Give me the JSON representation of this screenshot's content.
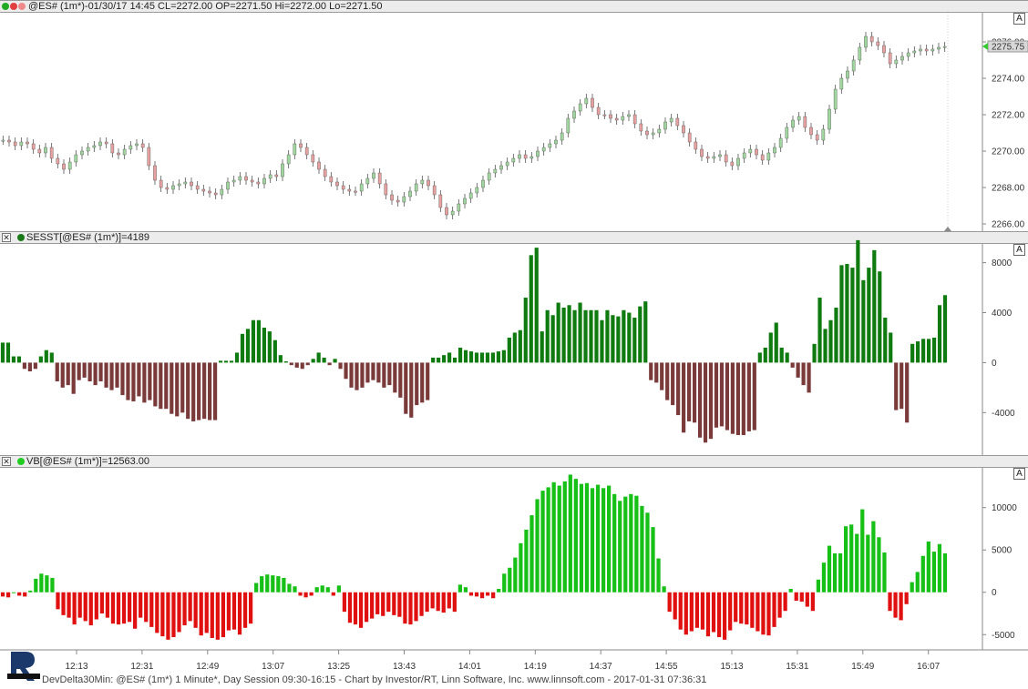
{
  "colors": {
    "up_green": "#0f7a0f",
    "down_brown": "#7a3a3a",
    "vb_up": "#16c016",
    "vb_down": "#e01010",
    "candle_up": "#9ed69e",
    "candle_down": "#e6a0a0",
    "header_bg": "#ececec"
  },
  "panels": {
    "price_header": "@ES# (1m*)-01/30/17 14:45 CL=2272.00 OP=2271.50 Hi=2272.00 Lo=2271.50",
    "sesst_header": "SESST[@ES# (1m*)]=4189",
    "vb_header": "VB[@ES# (1m*)]=12563.00",
    "a_button": "A",
    "close_button": "✕"
  },
  "footer": "DevDelta30Min: @ES# (1m*) 1 Minute*, Day Session 09:30-16:15 - Chart by Investor/RT, Linn Software, Inc. www.linnsoft.com - 2017-01-31 07:36:31",
  "chart_data": [
    {
      "type": "candlestick",
      "yticks": [
        "2276.00",
        "2274.00",
        "2272.00",
        "2270.00",
        "2268.00",
        "2266.00"
      ],
      "ylim": [
        2265.6,
        2277.6
      ],
      "last_price": "2275.75",
      "y": [
        2270.6,
        2270.5,
        2270.3,
        2270.5,
        2270.4,
        2270.1,
        2269.9,
        2270.2,
        2269.6,
        2269.3,
        2269.0,
        2269.4,
        2269.8,
        2270.0,
        2270.2,
        2270.3,
        2270.5,
        2270.4,
        2269.9,
        2269.8,
        2270.1,
        2270.3,
        2270.4,
        2270.2,
        2269.2,
        2268.4,
        2268.0,
        2267.9,
        2268.1,
        2268.2,
        2268.3,
        2268.1,
        2267.9,
        2267.8,
        2267.7,
        2267.6,
        2267.9,
        2268.3,
        2268.4,
        2268.6,
        2268.4,
        2268.3,
        2268.2,
        2268.5,
        2268.7,
        2268.6,
        2269.3,
        2269.8,
        2270.4,
        2270.2,
        2269.8,
        2269.4,
        2269.0,
        2268.6,
        2268.3,
        2268.1,
        2267.9,
        2267.8,
        2267.8,
        2268.2,
        2268.5,
        2268.8,
        2268.2,
        2267.6,
        2267.3,
        2267.2,
        2267.5,
        2267.8,
        2268.2,
        2268.4,
        2268.1,
        2267.6,
        2266.9,
        2266.5,
        2266.7,
        2267.1,
        2267.4,
        2267.7,
        2268.0,
        2268.4,
        2268.8,
        2269.0,
        2269.2,
        2269.4,
        2269.6,
        2269.8,
        2269.6,
        2269.7,
        2270.0,
        2270.2,
        2270.4,
        2270.6,
        2271.0,
        2271.8,
        2272.2,
        2272.6,
        2272.9,
        2272.4,
        2272.0,
        2272.0,
        2271.8,
        2271.7,
        2271.9,
        2272.0,
        2271.5,
        2271.1,
        2270.9,
        2271.0,
        2271.2,
        2271.6,
        2271.8,
        2271.4,
        2271.0,
        2270.5,
        2270.1,
        2269.7,
        2269.6,
        2269.7,
        2269.8,
        2269.4,
        2269.2,
        2269.6,
        2269.9,
        2270.1,
        2269.8,
        2269.5,
        2269.9,
        2270.2,
        2270.7,
        2271.3,
        2271.7,
        2271.9,
        2271.3,
        2270.9,
        2270.6,
        2271.2,
        2272.3,
        2273.4,
        2274.0,
        2274.4,
        2275.0,
        2275.7,
        2276.3,
        2276.0,
        2275.8,
        2275.4,
        2274.8,
        2275.0,
        2275.2,
        2275.4,
        2275.5,
        2275.6,
        2275.5,
        2275.6,
        2275.7,
        2275.75
      ],
      "up": [
        true,
        false,
        false,
        true,
        false,
        false,
        false,
        true,
        false,
        false,
        false,
        true,
        true,
        true,
        true,
        true,
        true,
        false,
        false,
        false,
        true,
        true,
        true,
        false,
        false,
        false,
        false,
        false,
        true,
        true,
        true,
        false,
        false,
        false,
        false,
        false,
        true,
        true,
        true,
        true,
        false,
        false,
        false,
        true,
        true,
        false,
        true,
        true,
        true,
        false,
        false,
        false,
        false,
        false,
        false,
        false,
        false,
        false,
        false,
        true,
        true,
        true,
        false,
        false,
        false,
        false,
        true,
        true,
        true,
        true,
        false,
        false,
        false,
        false,
        true,
        true,
        true,
        true,
        true,
        true,
        true,
        true,
        true,
        true,
        true,
        true,
        false,
        true,
        true,
        true,
        true,
        true,
        true,
        true,
        true,
        true,
        true,
        false,
        false,
        false,
        false,
        false,
        true,
        true,
        false,
        false,
        false,
        true,
        true,
        true,
        true,
        false,
        false,
        false,
        false,
        false,
        false,
        true,
        true,
        false,
        false,
        true,
        true,
        true,
        false,
        false,
        true,
        true,
        true,
        true,
        true,
        true,
        false,
        false,
        false,
        true,
        true,
        true,
        true,
        true,
        true,
        true,
        true,
        false,
        false,
        false,
        false,
        true,
        true,
        true,
        true,
        true,
        false,
        true,
        true,
        true
      ]
    },
    {
      "type": "bar",
      "yticks": [
        "8000",
        "4000",
        "0",
        "-4000"
      ],
      "ylim": [
        -7400,
        9500
      ],
      "values": [
        1600,
        1600,
        500,
        500,
        -500,
        -700,
        -500,
        500,
        1000,
        800,
        -1500,
        -2000,
        -1800,
        -2500,
        -1400,
        -1200,
        -1500,
        -1800,
        -1500,
        -2000,
        -2200,
        -2000,
        -2600,
        -3000,
        -3100,
        -2700,
        -3200,
        -3000,
        -3500,
        -3700,
        -3700,
        -4100,
        -4300,
        -4000,
        -4500,
        -4700,
        -4600,
        -4500,
        -4600,
        -4600,
        150,
        150,
        150,
        800,
        2300,
        2700,
        3400,
        3400,
        2800,
        2500,
        1800,
        600,
        100,
        -200,
        -400,
        -500,
        -200,
        300,
        800,
        400,
        -200,
        300,
        -500,
        -1300,
        -2000,
        -2200,
        -2000,
        -1600,
        -1400,
        -1600,
        -2000,
        -1800,
        -2400,
        -2800,
        -4100,
        -4400,
        -3400,
        -3200,
        -3000,
        400,
        400,
        600,
        800,
        400,
        1200,
        1000,
        900,
        800,
        800,
        800,
        800,
        900,
        1000,
        2000,
        2400,
        2600,
        5200,
        8600,
        9200,
        2500,
        4200,
        3800,
        4800,
        4400,
        4600,
        4200,
        4800,
        4200,
        4200,
        4200,
        3400,
        4200,
        3800,
        3700,
        4200,
        4000,
        3600,
        4500,
        4900,
        -1400,
        -1600,
        -2200,
        -3000,
        -3400,
        -4200,
        -5600,
        -4700,
        -4800,
        -6000,
        -6400,
        -6100,
        -5200,
        -5100,
        -5400,
        -5700,
        -5800,
        -5800,
        -5500,
        -5400,
        800,
        1200,
        2400,
        3200,
        1200,
        800,
        -400,
        -1200,
        -1800,
        -2400,
        1500,
        5200,
        2700,
        3400,
        4400,
        7800,
        7900,
        7600,
        9800,
        6600,
        7600,
        9000,
        7300,
        3600,
        2400,
        -3800,
        -3700,
        -4800,
        1500,
        1700,
        1900,
        1900,
        2000,
        4600,
        5400
      ]
    },
    {
      "type": "bar",
      "yticks": [
        "10000",
        "5000",
        "0",
        "-5000"
      ],
      "ylim": [
        -6800,
        14700
      ],
      "values": [
        -500,
        -600,
        0,
        -400,
        -500,
        200,
        1600,
        2200,
        2000,
        1700,
        -2000,
        -2700,
        -3000,
        -3800,
        -3000,
        -3400,
        -3900,
        -3200,
        -2500,
        -3000,
        -3700,
        -3800,
        -3700,
        -3500,
        -4300,
        -3000,
        -3500,
        -4100,
        -4800,
        -5200,
        -5600,
        -5300,
        -4700,
        -3900,
        -3400,
        -4200,
        -5100,
        -4800,
        -5400,
        -5600,
        -5300,
        -4500,
        -4400,
        -5000,
        -4200,
        -3700,
        1100,
        1900,
        2100,
        2000,
        1900,
        1700,
        1000,
        700,
        -400,
        -600,
        -400,
        600,
        800,
        600,
        -400,
        800,
        -2300,
        -3600,
        -3800,
        -4200,
        -3500,
        -3100,
        -2600,
        -2800,
        -2300,
        -2700,
        -2900,
        -3700,
        -3800,
        -3400,
        -2800,
        -2300,
        -1900,
        -2200,
        -2400,
        -1900,
        -2300,
        900,
        600,
        -400,
        -500,
        -700,
        -400,
        -700,
        400,
        2200,
        2900,
        4100,
        5800,
        7400,
        9100,
        11000,
        12000,
        12400,
        13000,
        12600,
        13100,
        13900,
        13400,
        12800,
        12900,
        12300,
        12700,
        12300,
        12600,
        11600,
        10800,
        11300,
        11600,
        11400,
        10200,
        9400,
        7700,
        4000,
        700,
        -2300,
        -3200,
        -4400,
        -5000,
        -4600,
        -4200,
        -4400,
        -5200,
        -4700,
        -5300,
        -5600,
        -4500,
        -3500,
        -3700,
        -3800,
        -4200,
        -4600,
        -5000,
        -5100,
        -4100,
        -3000,
        -2200,
        400,
        -1000,
        -1100,
        -1700,
        -2200,
        1500,
        3500,
        5500,
        4600,
        4600,
        7800,
        8000,
        6900,
        9800,
        6800,
        8400,
        6500,
        4700,
        -2200,
        -3000,
        -3300,
        -1400,
        1200,
        2400,
        4300,
        6000,
        4800,
        5700,
        4600
      ]
    }
  ],
  "x_ticks": [
    "12:13",
    "12:31",
    "12:49",
    "13:07",
    "13:25",
    "13:43",
    "14:01",
    "14:19",
    "14:37",
    "14:55",
    "15:13",
    "15:31",
    "15:49",
    "16:07"
  ]
}
